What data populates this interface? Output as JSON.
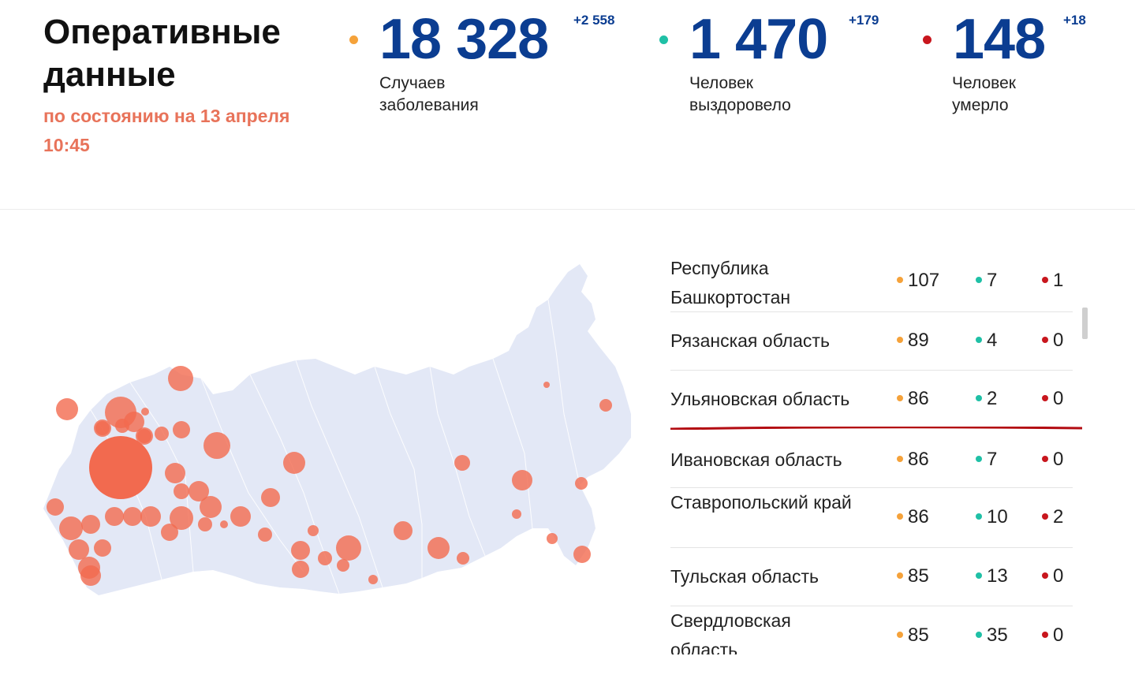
{
  "header": {
    "title": "Оперативные данные",
    "updated": "по состоянию на 13 апреля 10:45"
  },
  "colors": {
    "cases": "#f5a23a",
    "recovered": "#1fc0a6",
    "deaths": "#c8161d",
    "number": "#0b3d91",
    "accent": "#e8735a",
    "map_land": "#e3e8f6",
    "map_bubble": "#f26a4f",
    "highlight": "#b30c12"
  },
  "stats": [
    {
      "key": "cases",
      "value": "18 328",
      "delta": "+2 558",
      "label_line1": "Случаев",
      "label_line2": "заболевания",
      "color": "#f5a23a"
    },
    {
      "key": "recovered",
      "value": "1 470",
      "delta": "+179",
      "label_line1": "Человек",
      "label_line2": "выздоровело",
      "color": "#1fc0a6"
    },
    {
      "key": "deaths",
      "value": "148",
      "delta": "+18",
      "label_line1": "Человек",
      "label_line2": "умерло",
      "color": "#c8161d"
    }
  ],
  "regions": [
    {
      "name": "Республика Башкортостан",
      "cases": "107",
      "recovered": "7",
      "deaths": "1"
    },
    {
      "name": "Рязанская область",
      "cases": "89",
      "recovered": "4",
      "deaths": "0"
    },
    {
      "name": "Ульяновская область",
      "cases": "86",
      "recovered": "2",
      "deaths": "0"
    },
    {
      "name": "Ивановская область",
      "cases": "86",
      "recovered": "7",
      "deaths": "0"
    },
    {
      "name": "Ставропольский край",
      "cases": "86",
      "recovered": "10",
      "deaths": "2"
    },
    {
      "name": "Тульская область",
      "cases": "85",
      "recovered": "13",
      "deaths": "0"
    },
    {
      "name": "Свердловская область",
      "cases": "85",
      "recovered": "35",
      "deaths": "0"
    }
  ]
}
